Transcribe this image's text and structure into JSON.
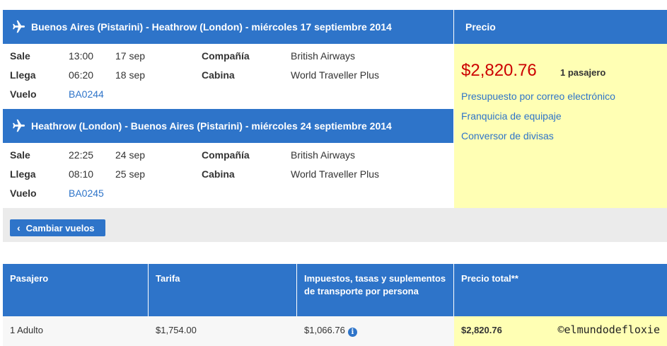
{
  "colors": {
    "primary_blue": "#2e74c9",
    "link_blue": "#2e74c9",
    "price_red": "#cc0000",
    "highlight_yellow": "#ffffb4",
    "bar_gray": "#ebebeb"
  },
  "segments": [
    {
      "icon": "airplane-icon",
      "title": "Buenos Aires (Pistarini) - Heathrow (London) - miércoles 17 septiembre 2014",
      "depart_label": "Sale",
      "depart_time": "13:00",
      "depart_date": "17 sep",
      "arrive_label": "Llega",
      "arrive_time": "06:20",
      "arrive_date": "18 sep",
      "flight_label": "Vuelo",
      "flight_number": "BA0244",
      "company_label": "Compañía",
      "company": "British Airways",
      "cabin_label": "Cabina",
      "cabin": "World Traveller Plus"
    },
    {
      "icon": "airplane-icon",
      "title": "Heathrow (London) - Buenos Aires (Pistarini) - miércoles 24 septiembre 2014",
      "depart_label": "Sale",
      "depart_time": "22:25",
      "depart_date": "24 sep",
      "arrive_label": "Llega",
      "arrive_time": "08:10",
      "arrive_date": "25 sep",
      "flight_label": "Vuelo",
      "flight_number": "BA0245",
      "company_label": "Compañía",
      "company": "British Airways",
      "cabin_label": "Cabina",
      "cabin": "World Traveller Plus"
    }
  ],
  "price": {
    "header": "Precio",
    "amount": "$2,820.76",
    "passengers": "1 pasajero",
    "links": [
      "Presupuesto por correo electrónico",
      "Franquicia de equipaje",
      "Conversor de divisas"
    ]
  },
  "change_button": {
    "icon": "chevron-left-icon",
    "label": "Cambiar vuelos"
  },
  "fare_table": {
    "headers": [
      "Pasajero",
      "Tarifa",
      "Impuestos, tasas y suplementos de transporte por persona",
      "Precio total**"
    ],
    "row": {
      "passenger": "1 Adulto",
      "fare": "$1,754.00",
      "taxes": "$1,066.76",
      "taxes_icon": "info-icon",
      "total": "$2,820.76"
    }
  },
  "watermark": "©elmundodefloxie"
}
